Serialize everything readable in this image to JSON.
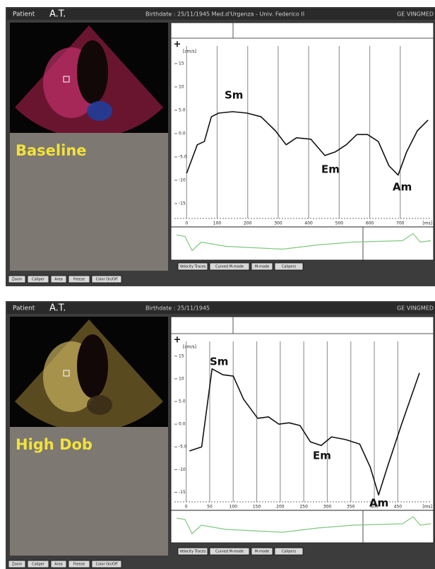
{
  "panels": [
    {
      "patient_label": "Patient",
      "patient": "A.T.",
      "birthdate": "Birthdate : 25/11/1945 Med.d'Urgenza - Univ. Federico II",
      "vendor": "GE VINGMED",
      "condition": "Baseline",
      "tabs": [
        "Velocity Traces",
        "Curved M-mode",
        "M-mode",
        "Calipers"
      ],
      "buttons": [
        "Zoom",
        "Caliper",
        "Area",
        "Freeze",
        "Color On/Off"
      ]
    },
    {
      "patient_label": "Patient",
      "patient": "A.T.",
      "birthdate": "Birthdate : 25/11/1945",
      "vendor": "GE VINGMED",
      "condition": "High Dob",
      "tabs": [
        "Velocity Traces",
        "Curved M-mode",
        "M-mode",
        "Calipers"
      ],
      "buttons": [
        "Zoom",
        "Caliper",
        "Area",
        "Freeze",
        "Color On/Off"
      ]
    }
  ],
  "chart_data": [
    {
      "type": "line",
      "y_unit": "[cm/s]",
      "x_unit": "[ms]",
      "x": [
        0,
        35,
        58,
        81,
        105,
        151,
        198,
        244,
        291,
        326,
        360,
        407,
        453,
        488,
        523,
        558,
        593,
        628,
        663,
        693,
        721,
        756,
        791
      ],
      "series": [
        {
          "color": "#111111",
          "values": [
            -8.5,
            -2.4,
            -1.7,
            3.6,
            4.4,
            4.7,
            4.4,
            3.6,
            0.6,
            -2.4,
            -0.9,
            -1.2,
            -4.7,
            -3.9,
            -2.4,
            -0.2,
            -0.2,
            -1.7,
            -6.9,
            -8.9,
            -3.9,
            0.6,
            2.9
          ]
        }
      ],
      "xlim": [
        -40,
        800
      ],
      "ylim": [
        -20,
        20
      ],
      "xticks": [
        0,
        100,
        200,
        300,
        400,
        500,
        600,
        700
      ],
      "yticks": [
        15,
        10,
        {
          "value": 5,
          "label": "5.0"
        },
        {
          "value": 0,
          "label": "0.0"
        },
        {
          "value": -5,
          "label": "-5.0"
        },
        -10,
        -15
      ],
      "grid": true,
      "annotations": [
        "Sm",
        "Em",
        "Am"
      ]
    },
    {
      "type": "line",
      "y_unit": "[cm/s]",
      "x_unit": "[ms]",
      "x": [
        7,
        33,
        55,
        78,
        100,
        122,
        152,
        175,
        197,
        219,
        242,
        264,
        287,
        309,
        339,
        369,
        391,
        409,
        428,
        458,
        496
      ],
      "series": [
        {
          "color": "#111111",
          "values": [
            -5.9,
            -5.0,
            12.2,
            10.9,
            10.6,
            5.5,
            1.3,
            1.6,
            0,
            0.3,
            -0.3,
            -3.9,
            -4.7,
            -2.8,
            -3.4,
            -4.4,
            -9.4,
            -15.6,
            -9.4,
            0,
            11.3
          ]
        }
      ],
      "xlim": [
        -25,
        520
      ],
      "ylim": [
        -19,
        19.5
      ],
      "xticks": [
        0,
        50,
        100,
        150,
        200,
        250,
        300,
        350,
        400,
        450
      ],
      "yticks": [
        15,
        10,
        {
          "value": 5,
          "label": "5.0"
        },
        {
          "value": 0,
          "label": "0.0"
        },
        {
          "value": -5,
          "label": "-5.0"
        },
        -10,
        -15
      ],
      "grid": true,
      "annotations": [
        "Sm",
        "Em",
        "Am"
      ]
    }
  ]
}
